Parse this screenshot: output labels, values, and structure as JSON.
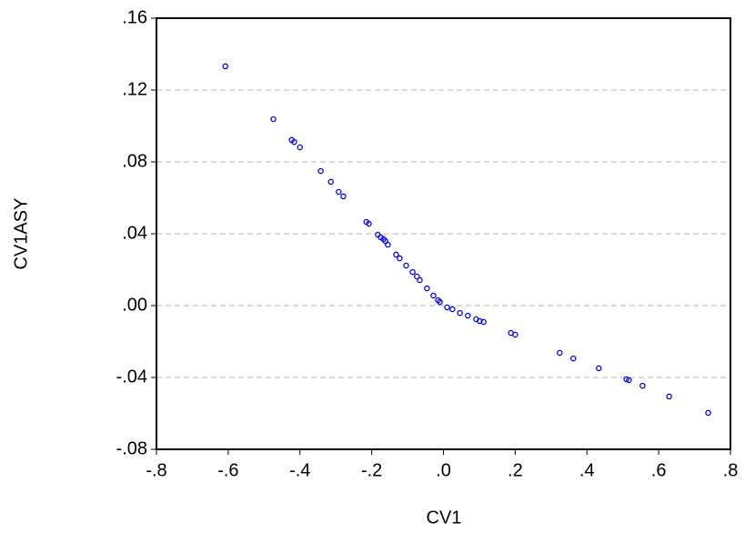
{
  "chart_data": {
    "type": "scatter",
    "x_label": "CV1",
    "y_label": "CV1ASY",
    "xlim": [
      -0.8,
      0.8
    ],
    "xticks": [
      {
        "value": -0.8,
        "label": "-.8"
      },
      {
        "value": -0.6,
        "label": "-.6"
      },
      {
        "value": -0.4,
        "label": "-.4"
      },
      {
        "value": -0.2,
        "label": "-.2"
      },
      {
        "value": 0,
        "label": ".0"
      },
      {
        "value": 0.2,
        "label": ".2"
      },
      {
        "value": 0.4,
        "label": ".4"
      },
      {
        "value": 0.6,
        "label": ".6"
      },
      {
        "value": 0.8,
        "label": ".8"
      }
    ],
    "ylim": [
      -0.08,
      0.16
    ],
    "yticks": [
      {
        "value": -0.08,
        "label": "-.08"
      },
      {
        "value": -0.04,
        "label": "-.04"
      },
      {
        "value": 0,
        "label": ".00"
      },
      {
        "value": 0.04,
        "label": ".04"
      },
      {
        "value": 0.08,
        "label": ".08"
      },
      {
        "value": 0.12,
        "label": ".12"
      },
      {
        "value": 0.16,
        "label": ".16"
      }
    ],
    "grid": true,
    "color": "#0000ff",
    "x": [
      -0.608,
      -0.474,
      -0.423,
      -0.416,
      -0.4,
      -0.342,
      -0.314,
      -0.292,
      -0.279,
      -0.215,
      -0.208,
      -0.183,
      -0.175,
      -0.167,
      -0.162,
      -0.155,
      -0.132,
      -0.122,
      -0.104,
      -0.086,
      -0.074,
      -0.066,
      -0.046,
      -0.028,
      -0.015,
      -0.01,
      0.01,
      0.025,
      0.046,
      0.068,
      0.091,
      0.101,
      0.112,
      0.188,
      0.2,
      0.324,
      0.362,
      0.433,
      0.51,
      0.517,
      0.555,
      0.629,
      0.738
    ],
    "values": [
      0.1332,
      0.1038,
      0.0922,
      0.0911,
      0.0881,
      0.0749,
      0.0689,
      0.0633,
      0.0608,
      0.0466,
      0.0456,
      0.0395,
      0.038,
      0.037,
      0.0359,
      0.0339,
      0.0284,
      0.0263,
      0.0223,
      0.0187,
      0.0162,
      0.0142,
      0.0096,
      0.0056,
      0.003,
      0.002,
      -0.001,
      -0.002,
      -0.0041,
      -0.0056,
      -0.0076,
      -0.0086,
      -0.0091,
      -0.0152,
      -0.0162,
      -0.0263,
      -0.0294,
      -0.0349,
      -0.041,
      -0.0415,
      -0.0446,
      -0.0506,
      -0.0597
    ]
  }
}
